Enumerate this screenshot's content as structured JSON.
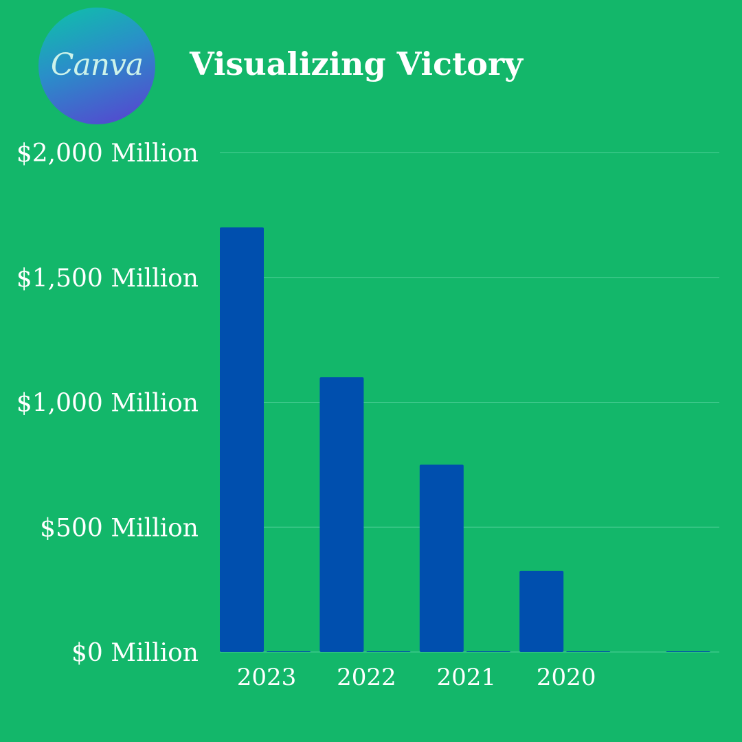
{
  "logo": {
    "text": "Canva",
    "colors": [
      "#0dc3a8",
      "#2a8ec9",
      "#5a3fd0"
    ]
  },
  "header": {
    "title": "Visualizing Victory"
  },
  "colors": {
    "background": "#13b76a",
    "bar": "#004fae",
    "gridline": "#4fd098"
  },
  "chart_data": {
    "type": "bar",
    "title": "Visualizing Victory",
    "categories": [
      "2023",
      "2022",
      "2021",
      "2020",
      ""
    ],
    "series": [
      {
        "values": [
          1700,
          1100,
          750,
          325,
          null
        ]
      },
      {
        "values": [
          0,
          0,
          0,
          0,
          0
        ]
      }
    ],
    "ytick_labels": [
      "$0 Million",
      "$500 Million",
      "$1,000 Million",
      "$1,500 Million",
      "$2,000 Million"
    ],
    "yticks": [
      0,
      500,
      1000,
      1500,
      2000
    ],
    "ylim": [
      0,
      2000
    ],
    "xlabel": "",
    "ylabel": "",
    "grid": true,
    "legend": "none"
  }
}
